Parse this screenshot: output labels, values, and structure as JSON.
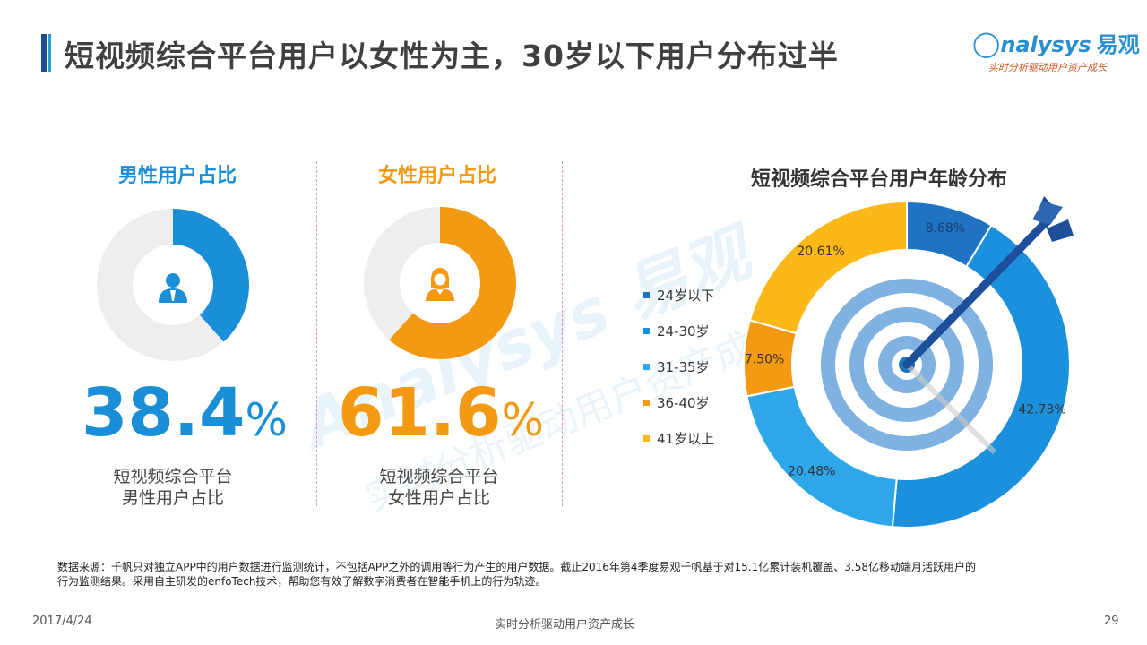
{
  "header": {
    "title": "短视频综合平台用户以女性为主，30岁以下用户分布过半",
    "logo_text": "nalysys",
    "logo_cn": "易观",
    "logo_tagline": "实时分析驱动用户资产成长"
  },
  "watermark": {
    "text": "Analysys 易观",
    "subtext": "实时分析驱动用户资产成长"
  },
  "gender": {
    "male": {
      "title": "男性用户占比",
      "value": 38.4,
      "number": "38.4",
      "unit": "%",
      "desc_line1": "短视频综合平台",
      "desc_line2": "男性用户占比",
      "color": "#1a8fd8",
      "icon": "male-user-icon"
    },
    "female": {
      "title": "女性用户占比",
      "value": 61.6,
      "number": "61.6",
      "unit": "%",
      "desc_line1": "短视频综合平台",
      "desc_line2": "女性用户占比",
      "color": "#f39a12",
      "icon": "female-user-icon"
    },
    "track_color": "#eeeeee"
  },
  "chart_data": [
    {
      "type": "pie",
      "categories": [
        "男性用户占比"
      ],
      "values": [
        38.4
      ]
    },
    {
      "type": "pie",
      "categories": [
        "女性用户占比"
      ],
      "values": [
        61.6
      ]
    },
    {
      "type": "pie",
      "title": "短视频综合平台用户年龄分布",
      "categories": [
        "24岁以下",
        "24-30岁",
        "31-35岁",
        "36-40岁",
        "41岁以上"
      ],
      "values": [
        8.68,
        42.73,
        20.48,
        7.5,
        20.61
      ],
      "labels": [
        "8.68%",
        "42.73%",
        "20.48%",
        "7.50%",
        "20.61%"
      ],
      "colors": [
        "#1f73c2",
        "#1b90dc",
        "#2ea7ea",
        "#f39a12",
        "#fbb818"
      ],
      "legend_position": "left"
    }
  ],
  "footnote": {
    "line1": "数据来源：千帆只对独立APP中的用户数据进行监测统计，不包括APP之外的调用等行为产生的用户数据。截止2016年第4季度易观千帆基于对15.1亿累计装机覆盖、3.58亿移动端月活跃用户的",
    "line2": "行为监测结果。采用自主研发的enfoTech技术，帮助您有效了解数字消费者在智能手机上的行为轨迹。"
  },
  "footer": {
    "date": "2017/4/24",
    "center": "实时分析驱动用户资产成长",
    "page": "29"
  },
  "icons": [
    "target-icon",
    "arrow-icon",
    "male-user-icon",
    "female-user-icon"
  ]
}
